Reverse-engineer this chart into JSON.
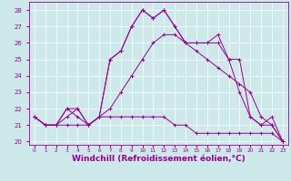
{
  "background_color": "#cce8e8",
  "line_color": "#990099",
  "xlabel": "Windchill (Refroidissement éolien,°C)",
  "xlabel_fontsize": 6.5,
  "ylim": [
    19.8,
    28.5
  ],
  "yticks": [
    20,
    21,
    22,
    23,
    24,
    25,
    26,
    27,
    28
  ],
  "xlim": [
    -0.5,
    23.5
  ],
  "series": [
    {
      "x": [
        0,
        1,
        2,
        3,
        4,
        5,
        6,
        7,
        8,
        9,
        10,
        11,
        12,
        13,
        14,
        15,
        16,
        17,
        18,
        19,
        20,
        21,
        22,
        23
      ],
      "y": [
        21.5,
        21.0,
        21.0,
        21.0,
        21.0,
        21.0,
        21.5,
        21.5,
        21.5,
        21.5,
        21.5,
        21.5,
        21.5,
        21.0,
        21.0,
        20.5,
        20.5,
        20.5,
        20.5,
        20.5,
        20.5,
        20.5,
        20.5,
        20.0
      ]
    },
    {
      "x": [
        0,
        1,
        2,
        3,
        4,
        5,
        6,
        7,
        8,
        9,
        10,
        11,
        12,
        13,
        14,
        15,
        16,
        17,
        18,
        19,
        20,
        21,
        22,
        23
      ],
      "y": [
        21.5,
        21.0,
        21.0,
        21.5,
        22.0,
        21.0,
        21.5,
        22.0,
        23.0,
        24.0,
        25.0,
        26.0,
        26.5,
        26.5,
        26.0,
        25.5,
        25.0,
        24.5,
        24.0,
        23.5,
        23.0,
        21.5,
        21.0,
        20.0
      ]
    },
    {
      "x": [
        0,
        1,
        2,
        3,
        4,
        5,
        6,
        7,
        8,
        9,
        10,
        11,
        12,
        13,
        14,
        15,
        16,
        17,
        18,
        19,
        20,
        21,
        22,
        23
      ],
      "y": [
        21.5,
        21.0,
        21.0,
        22.0,
        21.5,
        21.0,
        21.5,
        25.0,
        25.5,
        27.0,
        28.0,
        27.5,
        28.0,
        27.0,
        26.0,
        26.0,
        26.0,
        26.0,
        25.0,
        25.0,
        21.5,
        21.0,
        21.0,
        20.0
      ]
    },
    {
      "x": [
        0,
        1,
        2,
        3,
        4,
        5,
        6,
        7,
        8,
        9,
        10,
        11,
        12,
        13,
        14,
        15,
        16,
        17,
        18,
        19,
        20,
        21,
        22,
        23
      ],
      "y": [
        21.5,
        21.0,
        21.0,
        22.0,
        22.0,
        21.0,
        21.5,
        25.0,
        25.5,
        27.0,
        28.0,
        27.5,
        28.0,
        27.0,
        26.0,
        26.0,
        26.0,
        26.5,
        25.0,
        23.0,
        21.5,
        21.0,
        21.5,
        20.0
      ]
    }
  ]
}
